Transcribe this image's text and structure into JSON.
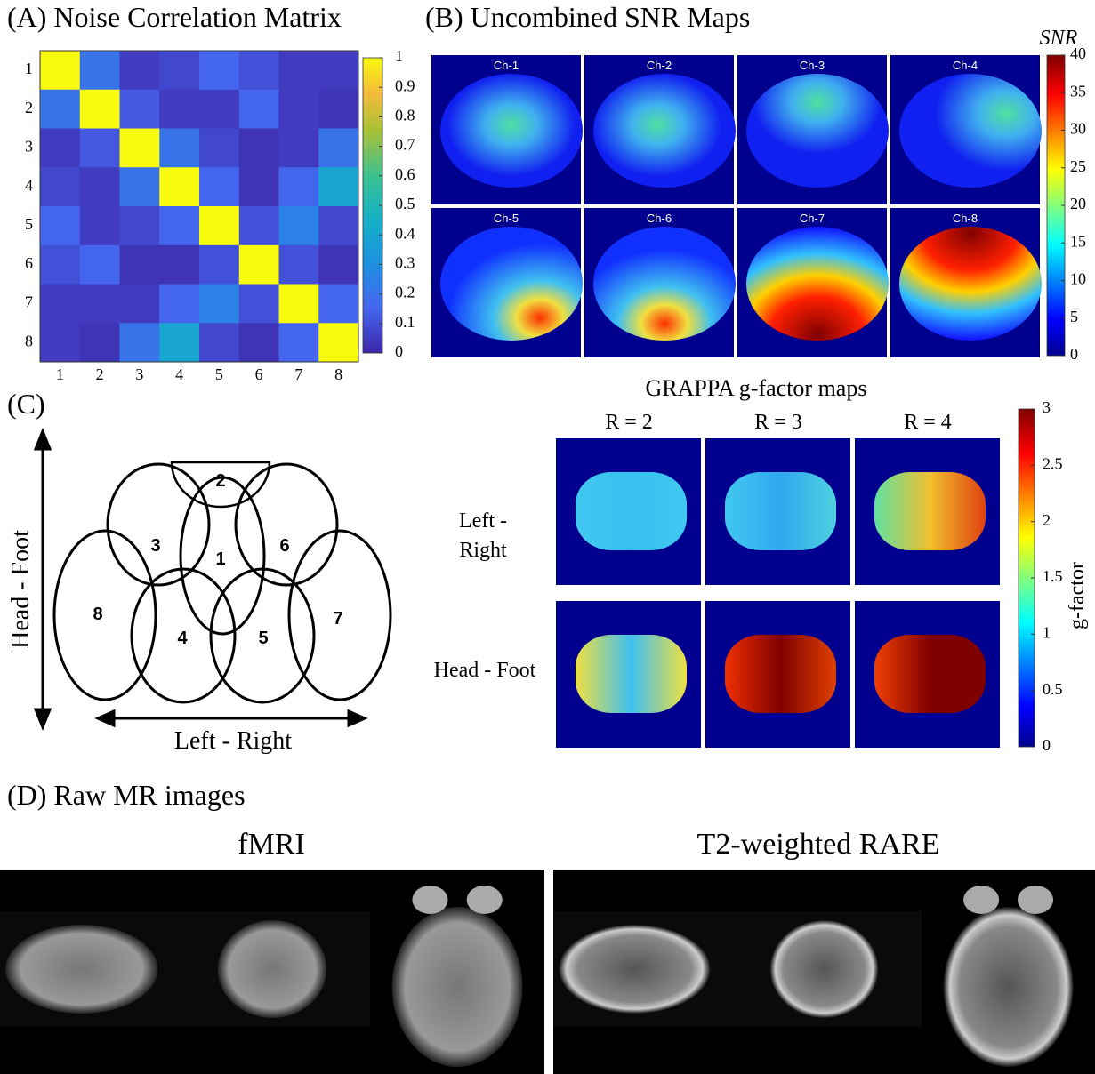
{
  "chart_data": [
    {
      "type": "heatmap",
      "title": "(A) Noise Correlation Matrix",
      "categories": [
        "1",
        "2",
        "3",
        "4",
        "5",
        "6",
        "7",
        "8"
      ],
      "values": [
        [
          1,
          0.2,
          0.05,
          0.08,
          0.15,
          0.1,
          0.05,
          0.05
        ],
        [
          0.2,
          1,
          0.12,
          0.05,
          0.05,
          0.15,
          0.05,
          0.03
        ],
        [
          0.05,
          0.12,
          1,
          0.2,
          0.08,
          0.03,
          0.05,
          0.2
        ],
        [
          0.08,
          0.05,
          0.2,
          1,
          0.15,
          0.03,
          0.15,
          0.4
        ],
        [
          0.15,
          0.05,
          0.08,
          0.15,
          1,
          0.1,
          0.25,
          0.08
        ],
        [
          0.1,
          0.15,
          0.03,
          0.03,
          0.1,
          1,
          0.1,
          0.03
        ],
        [
          0.05,
          0.05,
          0.05,
          0.15,
          0.25,
          0.1,
          1,
          0.15
        ],
        [
          0.05,
          0.03,
          0.2,
          0.4,
          0.08,
          0.03,
          0.15,
          1
        ]
      ],
      "colorbar": {
        "lim": [
          0,
          1
        ],
        "ticks": [
          0,
          0.1,
          0.2,
          0.3,
          0.4,
          0.5,
          0.6,
          0.7,
          0.8,
          0.9,
          1
        ]
      }
    }
  ],
  "snr_maps": {
    "title": "(B) Uncombined SNR Maps",
    "channels": [
      "Ch-1",
      "Ch-2",
      "Ch-3",
      "Ch-4",
      "Ch-5",
      "Ch-6",
      "Ch-7",
      "Ch-8"
    ],
    "colorbar": {
      "label": "SNR",
      "lim": [
        0,
        40
      ],
      "ticks": [
        0,
        5,
        10,
        15,
        20,
        25,
        30,
        35,
        40
      ]
    }
  },
  "coil_layout": {
    "title": "(C)",
    "axis_vertical": "Head - Foot",
    "axis_horizontal": "Left - Right",
    "coils": [
      "1",
      "2",
      "3",
      "4",
      "5",
      "6",
      "7",
      "8"
    ]
  },
  "gfactor": {
    "title": "GRAPPA g-factor maps",
    "columns": [
      "R = 2",
      "R = 3",
      "R = 4"
    ],
    "rows": [
      "Left - Right",
      "Head - Foot"
    ],
    "colorbar": {
      "label": "g-factor",
      "lim": [
        0,
        3
      ],
      "ticks": [
        0,
        0.5,
        1,
        1.5,
        2,
        2.5,
        3
      ]
    }
  },
  "raw": {
    "title": "(D) Raw MR images",
    "groups": [
      "fMRI",
      "T2-weighted RARE"
    ]
  }
}
